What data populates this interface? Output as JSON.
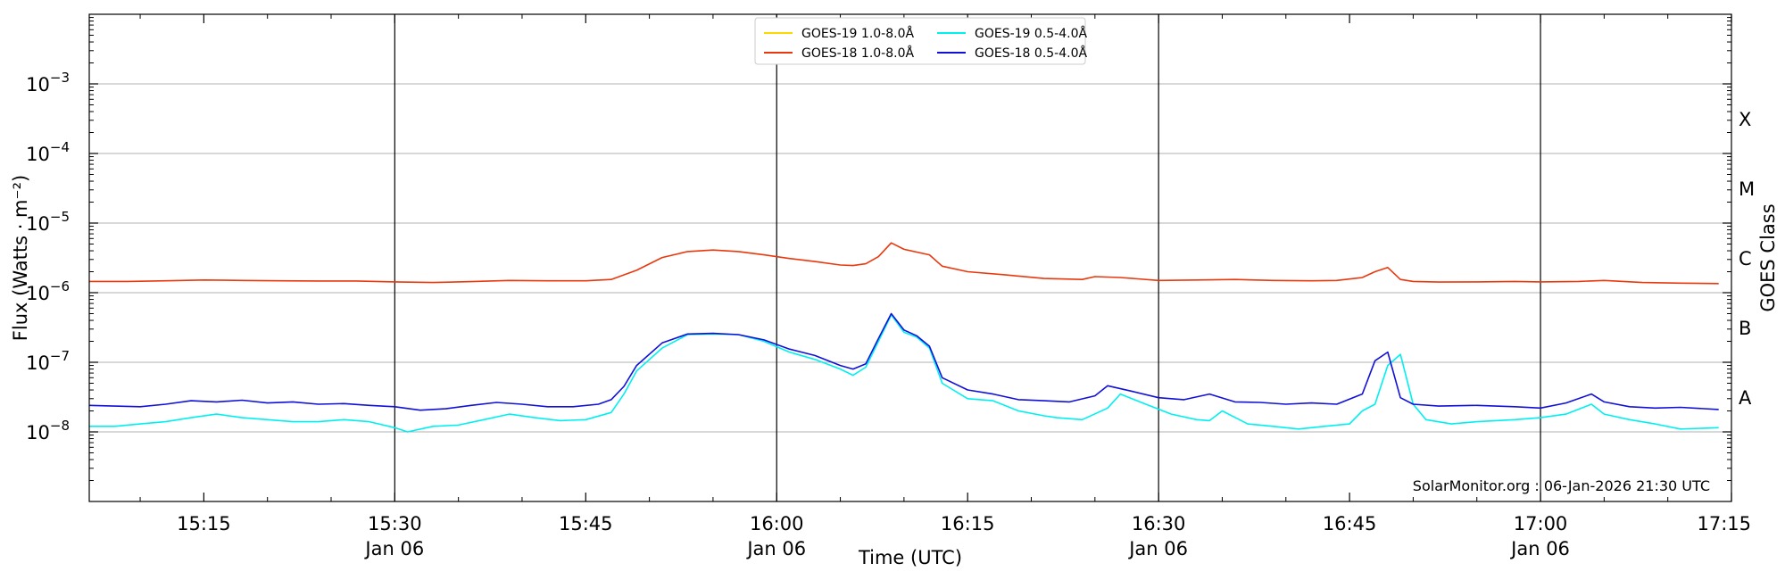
{
  "chart_data": {
    "type": "line",
    "title": "",
    "xlabel": "Time (UTC)",
    "ylabel": "Flux (Watts · m⁻²)",
    "y2label": "GOES Class",
    "yscale": "log",
    "xlim": [
      "15:06",
      "17:15"
    ],
    "ylim": [
      1e-09,
      0.01
    ],
    "grid": "horizontal",
    "legend_position": "top-center",
    "credit": "SolarMonitor.org : 06-Jan-2026 21:30 UTC",
    "x_ticks": [
      {
        "time": "15:15",
        "label": "15:15",
        "date": ""
      },
      {
        "time": "15:30",
        "label": "15:30",
        "date": "Jan 06"
      },
      {
        "time": "15:45",
        "label": "15:45",
        "date": ""
      },
      {
        "time": "16:00",
        "label": "16:00",
        "date": "Jan 06"
      },
      {
        "time": "16:15",
        "label": "16:15",
        "date": ""
      },
      {
        "time": "16:30",
        "label": "16:30",
        "date": "Jan 06"
      },
      {
        "time": "16:45",
        "label": "16:45",
        "date": ""
      },
      {
        "time": "17:00",
        "label": "17:00",
        "date": "Jan 06"
      },
      {
        "time": "17:15",
        "label": "17:15",
        "date": ""
      }
    ],
    "vertical_lines": [
      "15:30",
      "16:00",
      "16:30",
      "17:00"
    ],
    "y_ticks": [
      {
        "value": 1e-08,
        "base": "10",
        "exp": "−8"
      },
      {
        "value": 1e-07,
        "base": "10",
        "exp": "−7"
      },
      {
        "value": 1e-06,
        "base": "10",
        "exp": "−6"
      },
      {
        "value": 1e-05,
        "base": "10",
        "exp": "−5"
      },
      {
        "value": 0.0001,
        "base": "10",
        "exp": "−4"
      },
      {
        "value": 0.001,
        "base": "10",
        "exp": "−3"
      }
    ],
    "goes_classes": [
      {
        "label": "A",
        "value": 3.16e-08
      },
      {
        "label": "B",
        "value": 3.16e-07
      },
      {
        "label": "C",
        "value": 3.16e-06
      },
      {
        "label": "M",
        "value": 3.16e-05
      },
      {
        "label": "X",
        "value": 0.000316
      }
    ],
    "series": [
      {
        "name": "GOES-19 1.0-8.0Å",
        "color": "#ffd700",
        "x": [],
        "y": []
      },
      {
        "name": "GOES-18 1.0-8.0Å",
        "color": "#e8380d",
        "x": [
          "15:06",
          "15:09",
          "15:12",
          "15:15",
          "15:18",
          "15:21",
          "15:24",
          "15:27",
          "15:30",
          "15:33",
          "15:36",
          "15:39",
          "15:42",
          "15:45",
          "15:47",
          "15:49",
          "15:51",
          "15:53",
          "15:55",
          "15:57",
          "15:59",
          "16:01",
          "16:03",
          "16:05",
          "16:06",
          "16:07",
          "16:08",
          "16:09",
          "16:10",
          "16:12",
          "16:13",
          "16:15",
          "16:18",
          "16:21",
          "16:24",
          "16:25",
          "16:27",
          "16:30",
          "16:33",
          "16:36",
          "16:39",
          "16:42",
          "16:44",
          "16:46",
          "16:47",
          "16:48",
          "16:49",
          "16:50",
          "16:52",
          "16:55",
          "16:58",
          "17:00",
          "17:03",
          "17:05",
          "17:08",
          "17:11",
          "17:14"
        ],
        "y": [
          1.45e-06,
          1.45e-06,
          1.48e-06,
          1.52e-06,
          1.5e-06,
          1.48e-06,
          1.47e-06,
          1.47e-06,
          1.43e-06,
          1.4e-06,
          1.44e-06,
          1.5e-06,
          1.48e-06,
          1.48e-06,
          1.55e-06,
          2.1e-06,
          3.2e-06,
          3.9e-06,
          4.1e-06,
          3.9e-06,
          3.5e-06,
          3.1e-06,
          2.8e-06,
          2.5e-06,
          2.45e-06,
          2.6e-06,
          3.3e-06,
          5.2e-06,
          4.2e-06,
          3.5e-06,
          2.4e-06,
          2e-06,
          1.8e-06,
          1.6e-06,
          1.55e-06,
          1.7e-06,
          1.65e-06,
          1.5e-06,
          1.52e-06,
          1.55e-06,
          1.5e-06,
          1.48e-06,
          1.5e-06,
          1.65e-06,
          2e-06,
          2.3e-06,
          1.55e-06,
          1.45e-06,
          1.42e-06,
          1.43e-06,
          1.45e-06,
          1.43e-06,
          1.45e-06,
          1.5e-06,
          1.4e-06,
          1.37e-06,
          1.35e-06
        ]
      },
      {
        "name": "GOES-19 0.5-4.0Å",
        "color": "#00f0f0",
        "x": [
          "15:06",
          "15:08",
          "15:10",
          "15:12",
          "15:14",
          "15:16",
          "15:18",
          "15:20",
          "15:22",
          "15:24",
          "15:26",
          "15:28",
          "15:30",
          "15:31",
          "15:33",
          "15:35",
          "15:37",
          "15:39",
          "15:41",
          "15:43",
          "15:45",
          "15:47",
          "15:48",
          "15:49",
          "15:51",
          "15:53",
          "15:55",
          "15:57",
          "15:59",
          "16:01",
          "16:03",
          "16:05",
          "16:06",
          "16:07",
          "16:08",
          "16:09",
          "16:10",
          "16:11",
          "16:12",
          "16:13",
          "16:15",
          "16:17",
          "16:19",
          "16:21",
          "16:22",
          "16:24",
          "16:26",
          "16:27",
          "16:29",
          "16:31",
          "16:33",
          "16:34",
          "16:35",
          "16:37",
          "16:39",
          "16:41",
          "16:43",
          "16:45",
          "16:46",
          "16:47",
          "16:48",
          "16:49",
          "16:50",
          "16:51",
          "16:53",
          "16:55",
          "16:58",
          "17:00",
          "17:02",
          "17:04",
          "17:05",
          "17:07",
          "17:09",
          "17:11",
          "17:14"
        ],
        "y": [
          1.2e-08,
          1.2e-08,
          1.3e-08,
          1.4e-08,
          1.6e-08,
          1.8e-08,
          1.6e-08,
          1.5e-08,
          1.4e-08,
          1.4e-08,
          1.5e-08,
          1.4e-08,
          1.15e-08,
          1e-08,
          1.2e-08,
          1.25e-08,
          1.5e-08,
          1.8e-08,
          1.6e-08,
          1.45e-08,
          1.5e-08,
          1.9e-08,
          3.5e-08,
          7.5e-08,
          1.6e-07,
          2.5e-07,
          2.55e-07,
          2.5e-07,
          2e-07,
          1.4e-07,
          1.1e-07,
          8e-08,
          6.5e-08,
          8.5e-08,
          2e-07,
          4.8e-07,
          2.7e-07,
          2.3e-07,
          1.6e-07,
          5e-08,
          3e-08,
          2.8e-08,
          2e-08,
          1.7e-08,
          1.6e-08,
          1.5e-08,
          2.2e-08,
          3.5e-08,
          2.5e-08,
          1.8e-08,
          1.5e-08,
          1.45e-08,
          2e-08,
          1.3e-08,
          1.2e-08,
          1.1e-08,
          1.2e-08,
          1.3e-08,
          2e-08,
          2.5e-08,
          9e-08,
          1.3e-07,
          2.5e-08,
          1.5e-08,
          1.3e-08,
          1.4e-08,
          1.5e-08,
          1.6e-08,
          1.8e-08,
          2.5e-08,
          1.8e-08,
          1.5e-08,
          1.3e-08,
          1.1e-08,
          1.15e-08
        ]
      },
      {
        "name": "GOES-18 0.5-4.0Å",
        "color": "#1010d8",
        "x": [
          "15:06",
          "15:08",
          "15:10",
          "15:12",
          "15:14",
          "15:16",
          "15:18",
          "15:20",
          "15:22",
          "15:24",
          "15:26",
          "15:28",
          "15:30",
          "15:32",
          "15:34",
          "15:36",
          "15:38",
          "15:40",
          "15:42",
          "15:44",
          "15:46",
          "15:47",
          "15:48",
          "15:49",
          "15:51",
          "15:53",
          "15:55",
          "15:57",
          "15:59",
          "16:01",
          "16:03",
          "16:05",
          "16:06",
          "16:07",
          "16:08",
          "16:09",
          "16:10",
          "16:11",
          "16:12",
          "16:13",
          "16:15",
          "16:17",
          "16:19",
          "16:21",
          "16:23",
          "16:25",
          "16:26",
          "16:28",
          "16:30",
          "16:32",
          "16:34",
          "16:36",
          "16:38",
          "16:40",
          "16:42",
          "16:44",
          "16:46",
          "16:47",
          "16:48",
          "16:49",
          "16:50",
          "16:52",
          "16:55",
          "16:58",
          "17:00",
          "17:02",
          "17:04",
          "17:05",
          "17:07",
          "17:09",
          "17:11",
          "17:14"
        ],
        "y": [
          2.4e-08,
          2.35e-08,
          2.3e-08,
          2.5e-08,
          2.8e-08,
          2.7e-08,
          2.85e-08,
          2.6e-08,
          2.7e-08,
          2.5e-08,
          2.55e-08,
          2.4e-08,
          2.3e-08,
          2.05e-08,
          2.15e-08,
          2.4e-08,
          2.65e-08,
          2.5e-08,
          2.3e-08,
          2.3e-08,
          2.5e-08,
          2.9e-08,
          4.5e-08,
          9e-08,
          1.9e-07,
          2.55e-07,
          2.6e-07,
          2.5e-07,
          2.1e-07,
          1.55e-07,
          1.25e-07,
          9e-08,
          8e-08,
          9.5e-08,
          2.2e-07,
          5e-07,
          2.9e-07,
          2.4e-07,
          1.7e-07,
          6e-08,
          4e-08,
          3.5e-08,
          2.9e-08,
          2.8e-08,
          2.7e-08,
          3.3e-08,
          4.6e-08,
          3.8e-08,
          3.1e-08,
          2.9e-08,
          3.5e-08,
          2.7e-08,
          2.65e-08,
          2.5e-08,
          2.6e-08,
          2.5e-08,
          3.5e-08,
          1.05e-07,
          1.4e-07,
          3.1e-08,
          2.5e-08,
          2.35e-08,
          2.4e-08,
          2.3e-08,
          2.2e-08,
          2.6e-08,
          3.5e-08,
          2.7e-08,
          2.3e-08,
          2.2e-08,
          2.25e-08,
          2.1e-08
        ]
      }
    ]
  }
}
